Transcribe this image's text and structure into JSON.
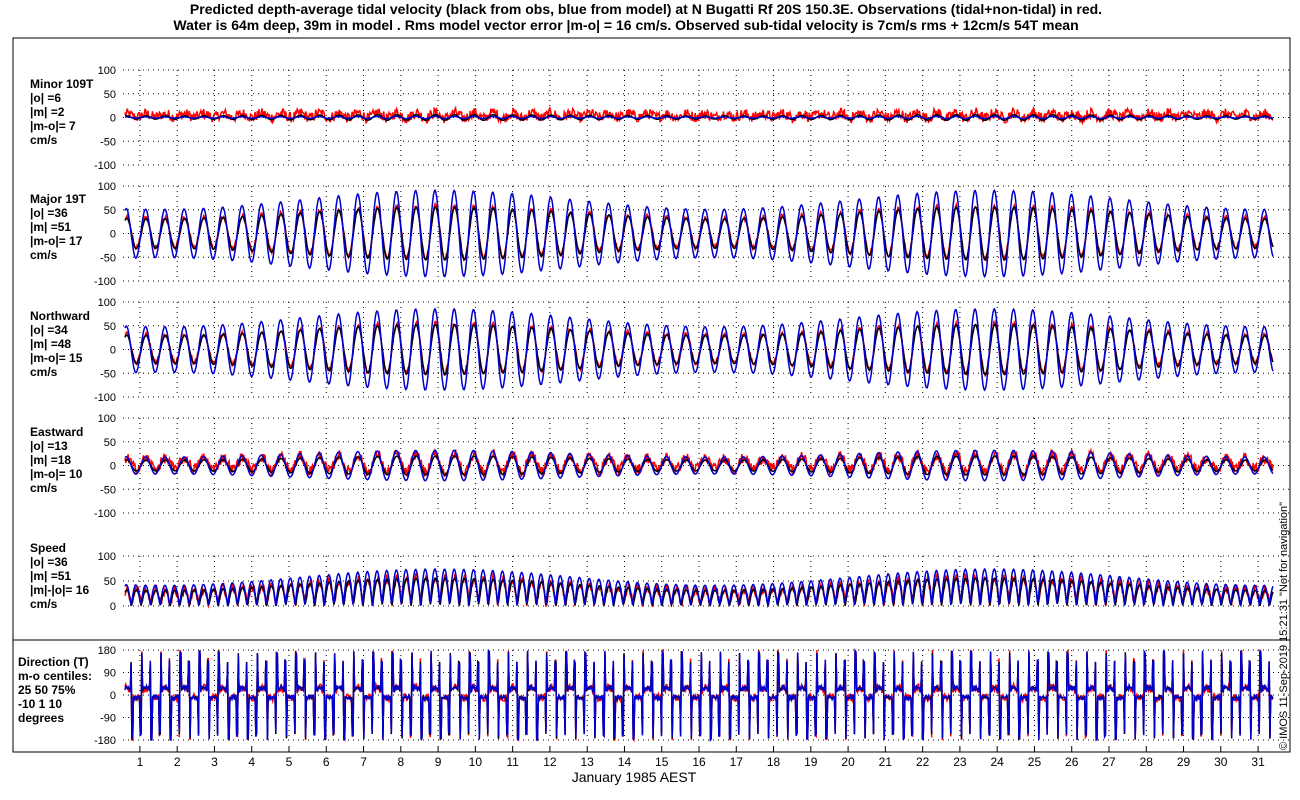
{
  "header": {
    "title_line1": "Predicted depth-average tidal velocity (black from obs, blue from model) at N Bugatti Rf 20S 150.3E. Observations (tidal+non-tidal) in red.",
    "title_line2": "Water is 64m deep, 39m in model . Rms model vector error |m-o| = 16 cm/s. Observed sub-tidal velocity is 7cm/s rms + 12cm/s 54T mean"
  },
  "credit": "© IMOS 11-Sep-2019 15:21:31  \"Not for navigation\"",
  "colors": {
    "observed": "#ff0000",
    "obs_tidal": "#000000",
    "model": "#0000cc"
  },
  "chart_data": {
    "type": "line",
    "xlabel": "January 1985 AEST",
    "xlim": [
      0.6,
      31.4
    ],
    "x_ticks": [
      1,
      2,
      3,
      4,
      5,
      6,
      7,
      8,
      9,
      10,
      11,
      12,
      13,
      14,
      15,
      16,
      17,
      18,
      19,
      20,
      21,
      22,
      23,
      24,
      25,
      26,
      27,
      28,
      29,
      30,
      31
    ],
    "grid": "dotted",
    "series_names": [
      "observed (tidal+non-tidal)",
      "tidal from obs",
      "tidal from model"
    ],
    "panels": [
      {
        "id": "minor",
        "label_lines": [
          "Minor 109T",
          "|o| =6",
          "|m| =2",
          "|m-o|= 7",
          "cm/s"
        ],
        "ylim": [
          -100,
          100
        ],
        "y_ticks": [
          -100,
          -50,
          0,
          50,
          100
        ],
        "tidal_amplitude": {
          "obs": 6,
          "model": 2
        }
      },
      {
        "id": "major",
        "label_lines": [
          "Major 19T",
          "|o| =36",
          "|m| =51",
          "|m-o|= 17",
          "cm/s"
        ],
        "ylim": [
          -100,
          100
        ],
        "y_ticks": [
          -100,
          -50,
          0,
          50,
          100
        ],
        "tidal_amplitude": {
          "obs": 36,
          "model": 51
        }
      },
      {
        "id": "northward",
        "label_lines": [
          "Northward",
          "|o| =34",
          "|m| =48",
          "|m-o|= 15",
          "cm/s"
        ],
        "ylim": [
          -100,
          100
        ],
        "y_ticks": [
          -100,
          -50,
          0,
          50,
          100
        ],
        "tidal_amplitude": {
          "obs": 34,
          "model": 48
        }
      },
      {
        "id": "eastward",
        "label_lines": [
          "Eastward",
          "|o| =13",
          "|m| =18",
          "|m-o|= 10",
          "cm/s"
        ],
        "ylim": [
          -100,
          100
        ],
        "y_ticks": [
          -100,
          -50,
          0,
          50,
          100
        ],
        "tidal_amplitude": {
          "obs": 13,
          "model": 18
        }
      },
      {
        "id": "speed",
        "label_lines": [
          "Speed",
          "|o| =36",
          "|m| =51",
          "|m|-|o|= 16",
          "cm/s"
        ],
        "ylim": [
          0,
          100
        ],
        "y_ticks": [
          0,
          50,
          100
        ],
        "tidal_amplitude": {
          "obs": 36,
          "model": 51
        }
      },
      {
        "id": "direction",
        "label_lines": [
          "Direction (T)",
          "m-o centiles:",
          "25  50  75%",
          "-10   1  10",
          "degrees"
        ],
        "ylim": [
          -180,
          180
        ],
        "y_ticks": [
          -180,
          -90,
          0,
          90,
          180
        ]
      }
    ]
  }
}
